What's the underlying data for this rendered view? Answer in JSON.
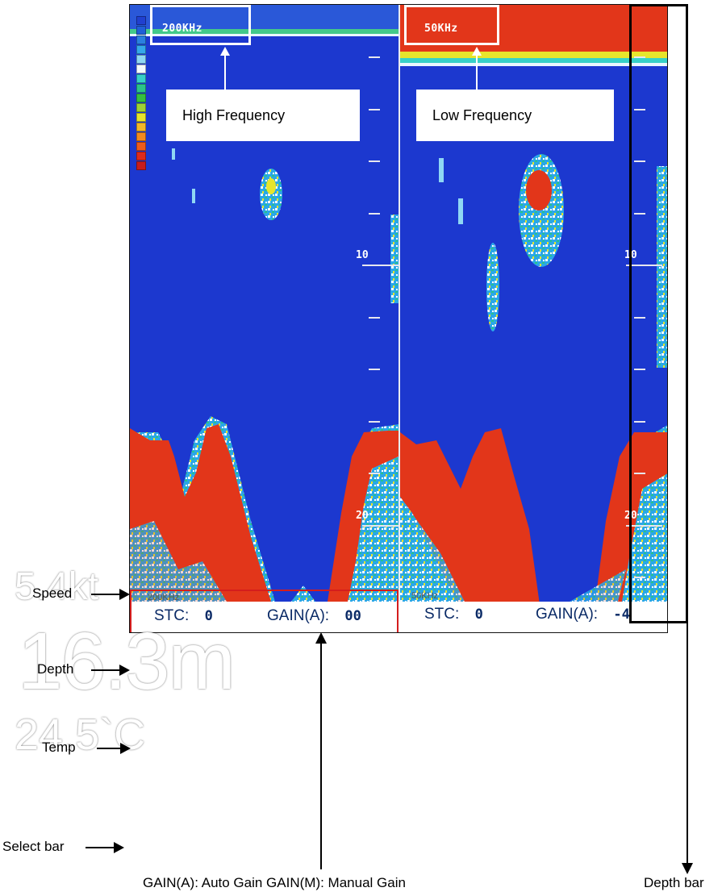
{
  "channels": {
    "high": {
      "frequency": "200KHz",
      "callout": "High Frequency",
      "stc_label": "STC:",
      "stc_value": "0",
      "gain_label": "GAIN(A):",
      "gain_value": "00",
      "small_label": "200KHz"
    },
    "low": {
      "frequency": "50KHz",
      "callout": "Low Frequency",
      "stc_label": "STC:",
      "stc_value": "0",
      "gain_label": "GAIN(A):",
      "gain_value": "-4",
      "small_label": "50KHz"
    }
  },
  "depth_scale": {
    "marks": [
      "10",
      "20"
    ]
  },
  "readouts": {
    "speed": "5.4kt",
    "depth": "16.3m",
    "temp": "24.5`C"
  },
  "annotations": {
    "speed": "Speed",
    "depth": "Depth",
    "temp": "Temp",
    "select_bar": "Select bar",
    "gain_note": "GAIN(A): Auto Gain GAIN(M): Manual Gain",
    "depth_bar": "Depth bar"
  },
  "colors": {
    "water": "#1c38cf",
    "strong_echo": "#e2361a",
    "scale": [
      "#2040d0",
      "#1f5fd8",
      "#2a7fe0",
      "#35a7ea",
      "#8fd7f4",
      "#f4fbff",
      "#37d0c8",
      "#2bc38a",
      "#35c042",
      "#9ed335",
      "#e7e52c",
      "#f2b82a",
      "#f28a1f",
      "#ec5b1c",
      "#dd2a1c",
      "#c81c1c"
    ],
    "select_bar_outline": "#d41d1d"
  },
  "icons": [
    "arrow-right-icon",
    "arrow-up-icon",
    "arrow-down-icon"
  ]
}
